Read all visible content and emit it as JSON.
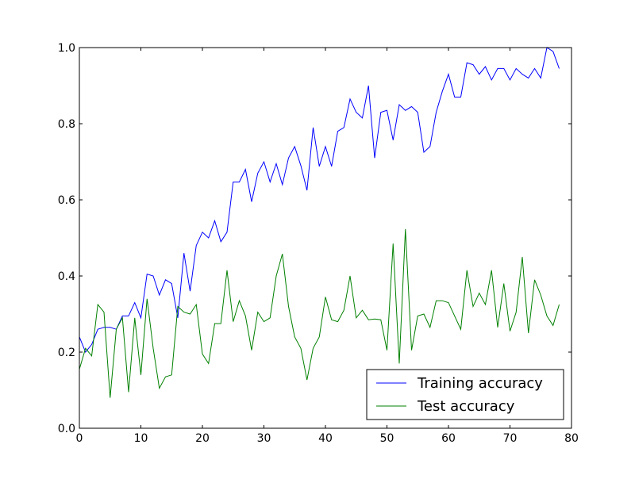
{
  "chart_data": {
    "type": "line",
    "title": "",
    "xlabel": "",
    "ylabel": "",
    "xlim": [
      0,
      80
    ],
    "ylim": [
      0.0,
      1.0
    ],
    "x_ticks": [
      {
        "value": 0,
        "label": "0"
      },
      {
        "value": 10,
        "label": "10"
      },
      {
        "value": 20,
        "label": "20"
      },
      {
        "value": 30,
        "label": "30"
      },
      {
        "value": 40,
        "label": "40"
      },
      {
        "value": 50,
        "label": "50"
      },
      {
        "value": 60,
        "label": "60"
      },
      {
        "value": 70,
        "label": "70"
      },
      {
        "value": 80,
        "label": "80"
      }
    ],
    "y_ticks": [
      {
        "value": 0.0,
        "label": "0.0"
      },
      {
        "value": 0.2,
        "label": "0.2"
      },
      {
        "value": 0.4,
        "label": "0.4"
      },
      {
        "value": 0.6,
        "label": "0.6"
      },
      {
        "value": 0.8,
        "label": "0.8"
      },
      {
        "value": 1.0,
        "label": "1.0"
      }
    ],
    "grid": false,
    "legend_position": "lower-right",
    "series": [
      {
        "name": "Training accuracy",
        "color": "#0000ff",
        "values": [
          0.24,
          0.2,
          0.22,
          0.26,
          0.265,
          0.265,
          0.26,
          0.295,
          0.295,
          0.33,
          0.29,
          0.405,
          0.4,
          0.35,
          0.39,
          0.38,
          0.29,
          0.46,
          0.36,
          0.48,
          0.515,
          0.5,
          0.545,
          0.49,
          0.515,
          0.647,
          0.647,
          0.68,
          0.595,
          0.67,
          0.7,
          0.647,
          0.695,
          0.64,
          0.71,
          0.74,
          0.69,
          0.625,
          0.79,
          0.688,
          0.74,
          0.688,
          0.78,
          0.79,
          0.865,
          0.83,
          0.815,
          0.9,
          0.71,
          0.83,
          0.835,
          0.757,
          0.85,
          0.835,
          0.845,
          0.83,
          0.725,
          0.74,
          0.83,
          0.885,
          0.93,
          0.87,
          0.87,
          0.96,
          0.955,
          0.93,
          0.95,
          0.915,
          0.945,
          0.945,
          0.915,
          0.945,
          0.93,
          0.92,
          0.945,
          0.92,
          1.0,
          0.99,
          0.945
        ]
      },
      {
        "name": "Test accuracy",
        "color": "#008000",
        "values": [
          0.155,
          0.21,
          0.19,
          0.325,
          0.305,
          0.08,
          0.26,
          0.29,
          0.095,
          0.29,
          0.14,
          0.34,
          0.21,
          0.105,
          0.135,
          0.14,
          0.32,
          0.305,
          0.3,
          0.325,
          0.195,
          0.17,
          0.275,
          0.275,
          0.415,
          0.28,
          0.335,
          0.295,
          0.205,
          0.305,
          0.28,
          0.29,
          0.4,
          0.458,
          0.32,
          0.24,
          0.21,
          0.127,
          0.21,
          0.24,
          0.345,
          0.285,
          0.28,
          0.31,
          0.4,
          0.29,
          0.31,
          0.285,
          0.287,
          0.285,
          0.205,
          0.485,
          0.17,
          0.523,
          0.205,
          0.295,
          0.3,
          0.265,
          0.335,
          0.335,
          0.33,
          0.295,
          0.26,
          0.415,
          0.32,
          0.355,
          0.325,
          0.415,
          0.265,
          0.38,
          0.255,
          0.305,
          0.45,
          0.25,
          0.39,
          0.35,
          0.295,
          0.27,
          0.325
        ]
      }
    ]
  }
}
